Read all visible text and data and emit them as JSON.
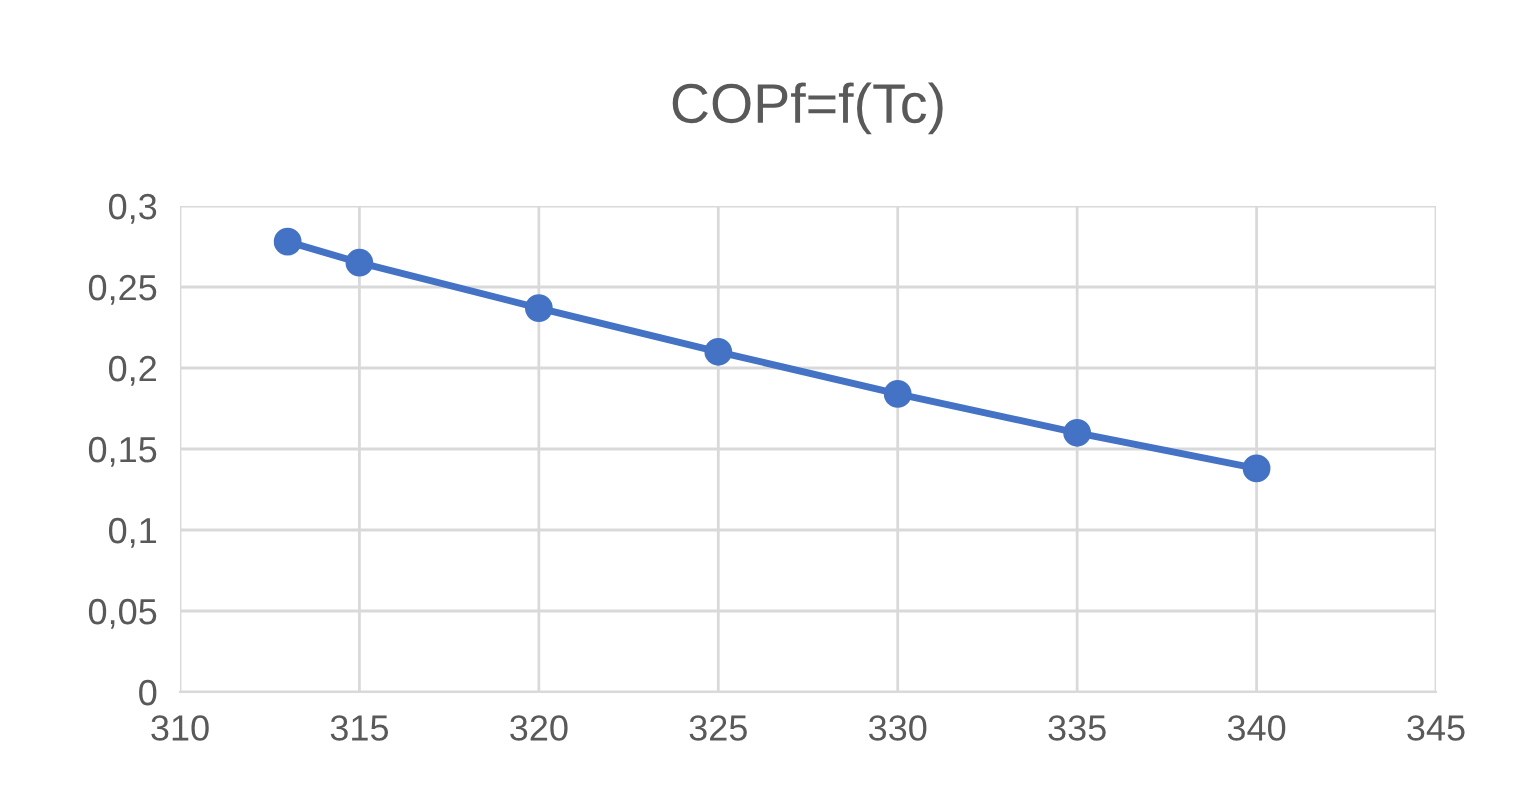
{
  "chart_data": {
    "type": "line",
    "title": "COPf=f(Tc)",
    "x": [
      313,
      315,
      320,
      325,
      330,
      335,
      340
    ],
    "series": [
      {
        "color": "#4472c4",
        "values": [
          0.278,
          0.265,
          0.237,
          0.21,
          0.184,
          0.16,
          0.138
        ]
      }
    ],
    "marker": "circle",
    "line_style": "solid",
    "grid": true,
    "xlim": [
      310,
      345
    ],
    "xticks": [
      310,
      315,
      320,
      325,
      330,
      335,
      340,
      345
    ],
    "ylim": [
      0,
      0.3
    ],
    "yticks": [
      0,
      {
        "value": 0.05,
        "label": "0,05"
      },
      {
        "value": 0.1,
        "label": "0,1"
      },
      {
        "value": 0.15,
        "label": "0,15"
      },
      {
        "value": 0.2,
        "label": "0,2"
      },
      {
        "value": 0.25,
        "label": "0,25"
      },
      {
        "value": 0.3,
        "label": "0,3"
      }
    ]
  }
}
